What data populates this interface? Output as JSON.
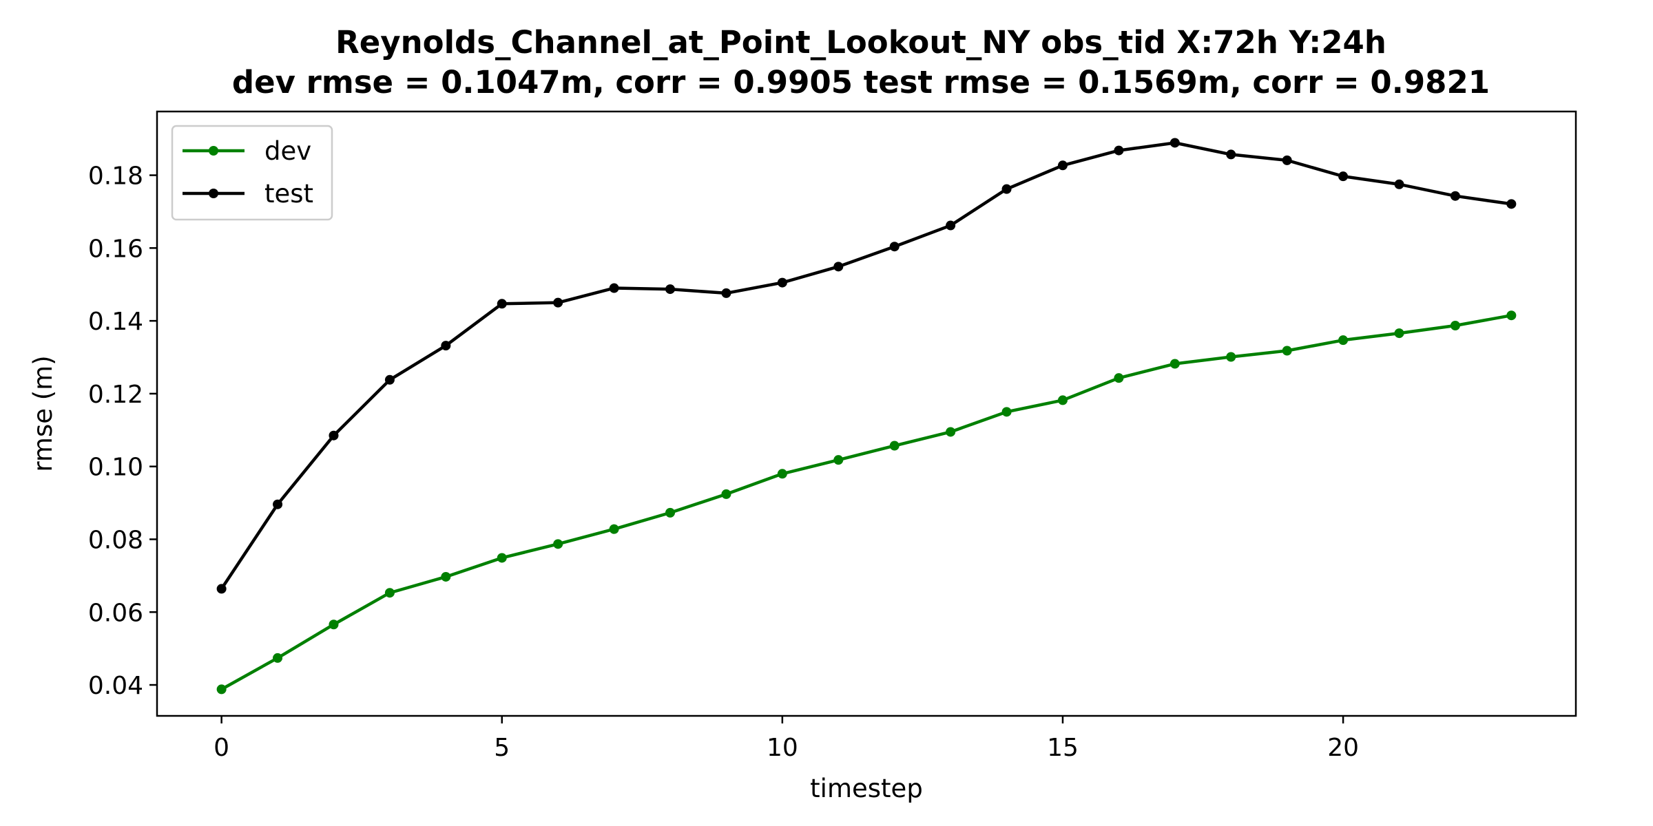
{
  "chart_data": {
    "type": "line",
    "title": "Reynolds_Channel_at_Point_Lookout_NY   obs_tid   X:72h   Y:24h",
    "subtitle": "dev rmse = 0.1047m, corr = 0.9905   test rmse = 0.1569m, corr = 0.9821",
    "xlabel": "timestep",
    "ylabel": "rmse (m)",
    "xlim": [
      -1.15,
      24.15
    ],
    "ylim": [
      0.0315,
      0.1975
    ],
    "xticks": [
      0,
      5,
      10,
      15,
      20
    ],
    "xtick_labels": [
      "0",
      "5",
      "10",
      "15",
      "20"
    ],
    "yticks": [
      0.04,
      0.06,
      0.08,
      0.1,
      0.12,
      0.14,
      0.16,
      0.18
    ],
    "ytick_labels": [
      "0.04",
      "0.06",
      "0.08",
      "0.10",
      "0.12",
      "0.14",
      "0.16",
      "0.18"
    ],
    "grid": false,
    "legend_position": "top-left",
    "x": [
      0,
      1,
      2,
      3,
      4,
      5,
      6,
      7,
      8,
      9,
      10,
      11,
      12,
      13,
      14,
      15,
      16,
      17,
      18,
      19,
      20,
      21,
      22,
      23
    ],
    "series": [
      {
        "name": "dev",
        "color": "#008000",
        "values": [
          0.0388,
          0.0474,
          0.0566,
          0.0653,
          0.0697,
          0.0749,
          0.0787,
          0.0828,
          0.0873,
          0.0924,
          0.098,
          0.1018,
          0.1057,
          0.1095,
          0.115,
          0.1182,
          0.1243,
          0.1282,
          0.1301,
          0.1318,
          0.1347,
          0.1366,
          0.1387,
          0.1415
        ]
      },
      {
        "name": "test",
        "color": "#000000",
        "values": [
          0.0664,
          0.0896,
          0.1085,
          0.1238,
          0.1332,
          0.1447,
          0.145,
          0.149,
          0.1487,
          0.1476,
          0.1505,
          0.1549,
          0.1604,
          0.1662,
          0.1762,
          0.1827,
          0.1868,
          0.1889,
          0.1857,
          0.1841,
          0.1797,
          0.1775,
          0.1743,
          0.1721
        ]
      }
    ]
  }
}
